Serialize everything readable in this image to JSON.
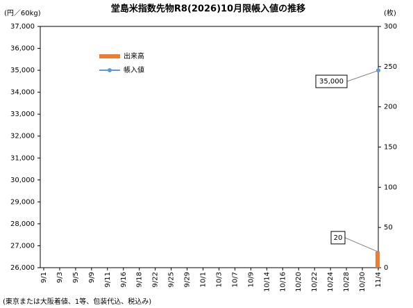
{
  "chart_data": {
    "type": "combo",
    "title": "堂島米指数先物R8(2026)10月限帳入値の推移",
    "y_label": "(円／60kg)",
    "y2_label": "(枚)",
    "note": "(東京または大阪着値、1等、包装代込、税込み)",
    "categories": [
      "9/1",
      "9/3",
      "9/5",
      "9/9",
      "9/11",
      "9/16",
      "9/18",
      "9/22",
      "9/25",
      "9/29",
      "10/1",
      "10/3",
      "10/7",
      "10/9",
      "10/14",
      "10/16",
      "10/20",
      "10/22",
      "10/24",
      "10/28",
      "10/30",
      "11/4"
    ],
    "series": [
      {
        "name": "出来高",
        "type": "bar",
        "axis": "y2",
        "color": "#ed7d31",
        "values": [
          null,
          null,
          null,
          null,
          null,
          null,
          null,
          null,
          null,
          null,
          null,
          null,
          null,
          null,
          null,
          null,
          null,
          null,
          null,
          null,
          null,
          20
        ]
      },
      {
        "name": "帳入値",
        "type": "line",
        "color": "#5b9bd5",
        "values": [
          null,
          null,
          null,
          null,
          null,
          null,
          null,
          null,
          null,
          null,
          null,
          null,
          null,
          null,
          null,
          null,
          null,
          null,
          null,
          null,
          null,
          35000
        ],
        "value_labels": [
          null,
          null,
          null,
          null,
          null,
          null,
          null,
          null,
          null,
          null,
          null,
          null,
          null,
          null,
          null,
          null,
          null,
          null,
          null,
          null,
          null,
          "35,000"
        ]
      }
    ],
    "ylim": [
      26000,
      37000
    ],
    "yticks": [
      {
        "value": 26000,
        "label": "26,000"
      },
      {
        "value": 27000,
        "label": "27,000"
      },
      {
        "value": 28000,
        "label": "28,000"
      },
      {
        "value": 29000,
        "label": "29,000"
      },
      {
        "value": 30000,
        "label": "30,000"
      },
      {
        "value": 31000,
        "label": "31,000"
      },
      {
        "value": 32000,
        "label": "32,000"
      },
      {
        "value": 33000,
        "label": "33,000"
      },
      {
        "value": 34000,
        "label": "34,000"
      },
      {
        "value": 35000,
        "label": "35,000"
      },
      {
        "value": 36000,
        "label": "36,000"
      },
      {
        "value": 37000,
        "label": "37,000"
      }
    ],
    "y2lim": [
      0,
      300
    ],
    "y2ticks": [
      0,
      50,
      100,
      150,
      200,
      250,
      300
    ],
    "grid": false
  }
}
